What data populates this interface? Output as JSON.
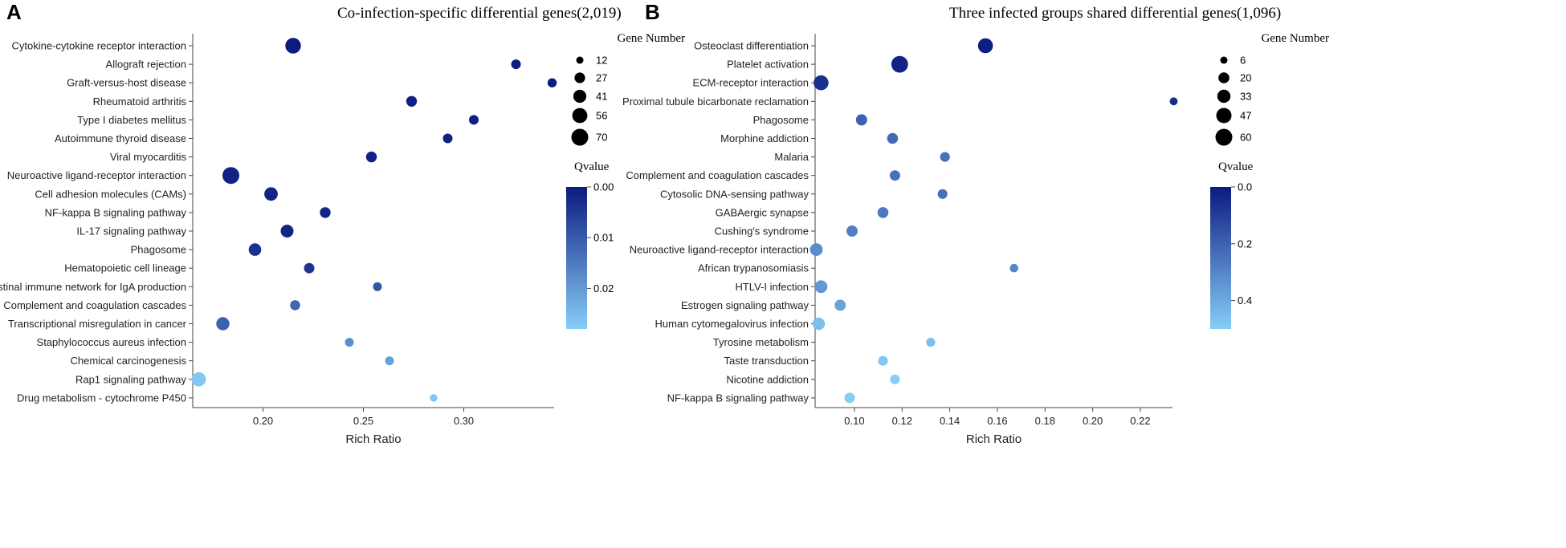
{
  "chart_data": [
    {
      "panel": "A",
      "type": "scatter",
      "title": "Co-infection-specific differential genes(2,019)",
      "xlabel": "Rich Ratio",
      "ylabel": "",
      "xlim": [
        0.165,
        0.345
      ],
      "xticks": [
        "0.20",
        "0.25",
        "0.30"
      ],
      "xtick_values": [
        0.2,
        0.25,
        0.3
      ],
      "categories": [
        "Cytokine-cytokine receptor interaction",
        "Allograft rejection",
        "Graft-versus-host disease",
        "Rheumatoid arthritis",
        "Type I diabetes mellitus",
        "Autoimmune thyroid disease",
        "Viral myocarditis",
        "Neuroactive ligand-receptor interaction",
        "Cell adhesion molecules (CAMs)",
        "NF-kappa B signaling pathway",
        "IL-17 signaling pathway",
        "Phagosome",
        "Hematopoietic cell lineage",
        "Intestinal immune network for IgA production",
        "Complement and coagulation cascades",
        "Transcriptional misregulation in cancer",
        "Staphylococcus aureus infection",
        "Chemical carcinogenesis",
        "Rap1 signaling pathway",
        "Drug metabolism - cytochrome P450"
      ],
      "rich_ratio": [
        0.215,
        0.326,
        0.344,
        0.274,
        0.305,
        0.292,
        0.254,
        0.184,
        0.204,
        0.231,
        0.212,
        0.196,
        0.223,
        0.257,
        0.216,
        0.18,
        0.243,
        0.263,
        0.168,
        0.285
      ],
      "gene_number": [
        60,
        22,
        20,
        28,
        22,
        22,
        28,
        70,
        44,
        28,
        40,
        38,
        26,
        18,
        24,
        42,
        18,
        18,
        50,
        14
      ],
      "qvalue": [
        0.0001,
        0.0005,
        0.0005,
        0.0008,
        0.0008,
        0.0008,
        0.001,
        0.0012,
        0.0015,
        0.0015,
        0.0015,
        0.0035,
        0.004,
        0.009,
        0.012,
        0.011,
        0.018,
        0.021,
        0.027,
        0.027
      ],
      "size_legend": {
        "title": "Gene Number",
        "values": [
          12,
          27,
          41,
          56,
          70
        ]
      },
      "color_legend": {
        "title": "Qvalue",
        "range": [
          0.0,
          0.028
        ],
        "ticks": [
          "0.00",
          "0.01",
          "0.02"
        ],
        "tick_values": [
          0.0,
          0.01,
          0.02
        ]
      },
      "size_domain": [
        12,
        70
      ],
      "color_high": "#0c1a80",
      "color_low": "#87cef7"
    },
    {
      "panel": "B",
      "type": "scatter",
      "title": "Three infected groups shared differential genes(1,096)",
      "xlabel": "Rich Ratio",
      "ylabel": "",
      "xlim": [
        0.0835,
        0.2335
      ],
      "xticks": [
        "0.10",
        "0.12",
        "0.14",
        "0.16",
        "0.18",
        "0.20",
        "0.22"
      ],
      "xtick_values": [
        0.1,
        0.12,
        0.14,
        0.16,
        0.18,
        0.2,
        0.22
      ],
      "categories": [
        "Osteoclast differentiation",
        "Platelet activation",
        "ECM-receptor interaction",
        "Proximal tubule bicarbonate reclamation",
        "Phagosome",
        "Morphine addiction",
        "Malaria",
        "Complement and coagulation cascades",
        "Cytosolic DNA-sensing pathway",
        "GABAergic synapse",
        "Cushing's syndrome",
        "Neuroactive ligand-receptor interaction",
        "African trypanosomiasis",
        "HTLV-I infection",
        "Estrogen signaling pathway",
        "Human cytomegalovirus infection",
        "Tyrosine metabolism",
        "Taste transduction",
        "Nicotine addiction",
        "NF-kappa B signaling pathway"
      ],
      "rich_ratio": [
        0.155,
        0.119,
        0.086,
        0.234,
        0.103,
        0.116,
        0.138,
        0.117,
        0.137,
        0.112,
        0.099,
        0.084,
        0.167,
        0.086,
        0.094,
        0.085,
        0.132,
        0.112,
        0.117,
        0.098
      ],
      "gene_number": [
        45,
        58,
        45,
        8,
        22,
        20,
        15,
        18,
        15,
        20,
        22,
        30,
        10,
        30,
        22,
        28,
        12,
        15,
        15,
        18
      ],
      "qvalue": [
        0.01,
        0.02,
        0.06,
        0.05,
        0.2,
        0.22,
        0.24,
        0.24,
        0.24,
        0.26,
        0.28,
        0.32,
        0.3,
        0.35,
        0.38,
        0.46,
        0.46,
        0.48,
        0.5,
        0.5
      ],
      "size_legend": {
        "title": "Gene Number",
        "values": [
          6,
          20,
          33,
          47,
          60
        ]
      },
      "color_legend": {
        "title": "Qvalue",
        "range": [
          0.0,
          0.5
        ],
        "ticks": [
          "0.0",
          "0.2",
          "0.4"
        ],
        "tick_values": [
          0.0,
          0.2,
          0.4
        ]
      },
      "size_domain": [
        6,
        60
      ],
      "color_high": "#0c1a80",
      "color_low": "#87cef7"
    }
  ]
}
